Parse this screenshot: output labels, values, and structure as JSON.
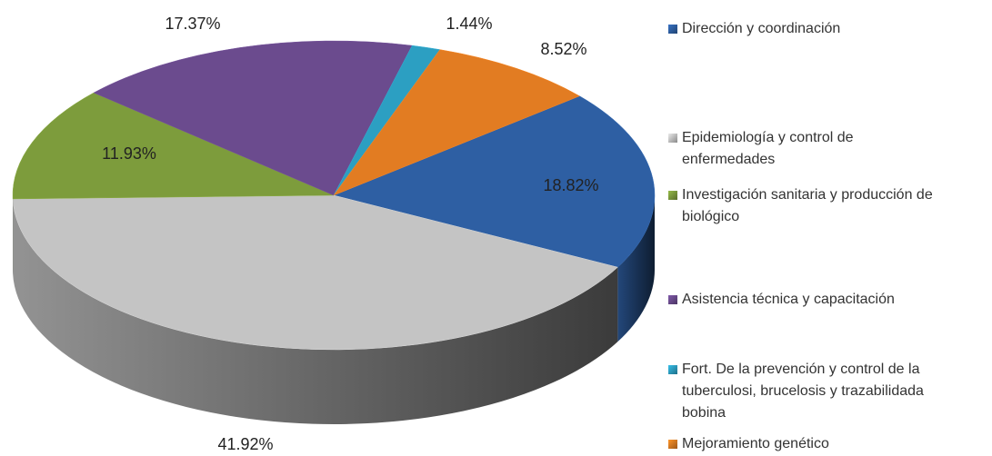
{
  "chart_data": {
    "type": "pie3d",
    "categories": [
      "Dirección y coordinación",
      "Epidemiología y control de enfermedades",
      "Investigación sanitaria y producción de biológico",
      "Asistencia técnica y capacitación",
      "Fort. De la prevención y control de la tuberculosi, brucelosis y trazabilidada bobina",
      "Mejoramiento genético"
    ],
    "values": [
      18.82,
      41.92,
      11.93,
      17.37,
      1.44,
      8.52
    ],
    "value_labels": [
      "18.82%",
      "41.92%",
      "11.93%",
      "17.37%",
      "1.44%",
      "8.52%"
    ],
    "colors": [
      "#2e5fa3",
      "#c4c4c4",
      "#7d9c3c",
      "#6b4b8e",
      "#2c9fc2",
      "#e27c22"
    ],
    "legend": "right"
  }
}
